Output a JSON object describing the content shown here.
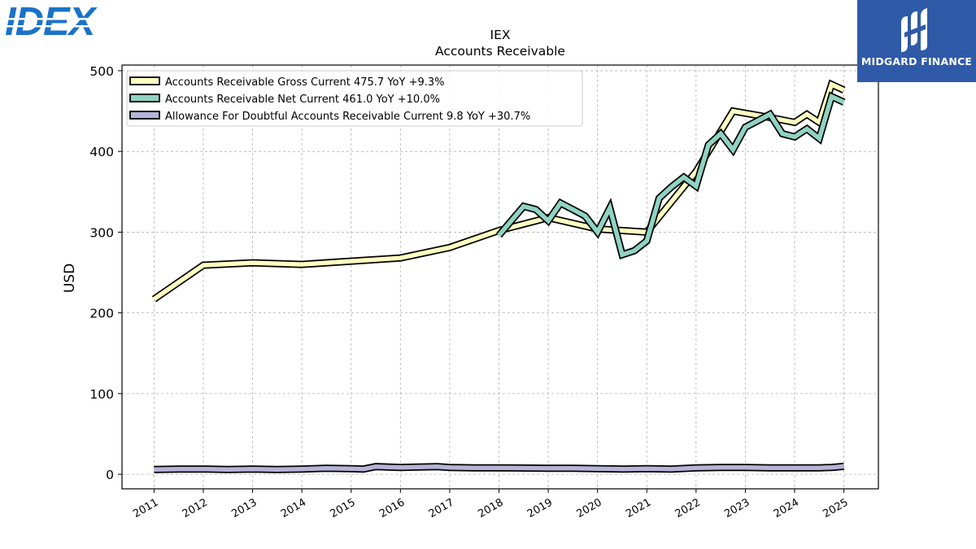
{
  "logos": {
    "company": "IDEX",
    "brand": "MIDGARD FINANCE"
  },
  "colors": {
    "gross": "#ffffc0",
    "net": "#8fd3c3",
    "allowance": "#b7b3d6",
    "brand_bg": "#2f5aa8",
    "company_logo": "#1a73c9"
  },
  "chart_data": {
    "type": "line",
    "title": "IEX",
    "subtitle": "Accounts Receivable",
    "xlabel": "",
    "ylabel": "USD",
    "ylim": [
      -18,
      507
    ],
    "xlim": [
      2010.35,
      2025.7
    ],
    "grid": true,
    "legend_position": "top-left",
    "x_ticks": [
      "2011",
      "2012",
      "2013",
      "2014",
      "2015",
      "2016",
      "2017",
      "2018",
      "2019",
      "2020",
      "2021",
      "2022",
      "2023",
      "2024",
      "2025"
    ],
    "y_ticks": [
      "0",
      "100",
      "200",
      "300",
      "400",
      "500"
    ],
    "series": [
      {
        "name": "Accounts Receivable Gross Current",
        "legend": "Accounts Receivable Gross Current  475.7 YoY +9.3%",
        "color": "#ffffc0",
        "points": [
          [
            2011.0,
            217
          ],
          [
            2012.0,
            259
          ],
          [
            2013.0,
            262
          ],
          [
            2014.0,
            260
          ],
          [
            2015.0,
            264
          ],
          [
            2016.0,
            268
          ],
          [
            2017.0,
            281
          ],
          [
            2018.0,
            302
          ],
          [
            2019.0,
            318
          ],
          [
            2020.0,
            304
          ],
          [
            2021.0,
            300
          ],
          [
            2022.0,
            375
          ],
          [
            2022.75,
            450
          ],
          [
            2023.5,
            442
          ],
          [
            2024.0,
            436
          ],
          [
            2024.25,
            446
          ],
          [
            2024.5,
            436
          ],
          [
            2024.75,
            483
          ],
          [
            2025.0,
            476
          ]
        ]
      },
      {
        "name": "Accounts Receivable Net Current",
        "legend": "Accounts Receivable Net Current  461.0 YoY +10.0%",
        "color": "#8fd3c3",
        "points": [
          [
            2018.0,
            296
          ],
          [
            2018.25,
            314
          ],
          [
            2018.5,
            332
          ],
          [
            2018.75,
            328
          ],
          [
            2019.0,
            314
          ],
          [
            2019.25,
            336
          ],
          [
            2019.5,
            328
          ],
          [
            2019.75,
            320
          ],
          [
            2020.0,
            300
          ],
          [
            2020.25,
            330
          ],
          [
            2020.5,
            272
          ],
          [
            2020.75,
            277
          ],
          [
            2021.0,
            289
          ],
          [
            2021.25,
            342
          ],
          [
            2021.5,
            356
          ],
          [
            2021.75,
            368
          ],
          [
            2022.0,
            357
          ],
          [
            2022.25,
            408
          ],
          [
            2022.5,
            422
          ],
          [
            2022.75,
            402
          ],
          [
            2023.0,
            430
          ],
          [
            2023.25,
            438
          ],
          [
            2023.5,
            446
          ],
          [
            2023.75,
            422
          ],
          [
            2024.0,
            418
          ],
          [
            2024.25,
            428
          ],
          [
            2024.5,
            416
          ],
          [
            2024.75,
            468
          ],
          [
            2025.0,
            461
          ]
        ]
      },
      {
        "name": "Allowance For Doubtful Accounts Receivable Current",
        "legend": "Allowance For Doubtful Accounts Receivable Current  9.8 YoY +30.7%",
        "color": "#b7b3d6",
        "points": [
          [
            2011.0,
            6
          ],
          [
            2011.5,
            6.5
          ],
          [
            2012.0,
            6.5
          ],
          [
            2012.5,
            6
          ],
          [
            2013.0,
            6.5
          ],
          [
            2013.5,
            6
          ],
          [
            2014.0,
            6.5
          ],
          [
            2014.5,
            7.5
          ],
          [
            2015.0,
            7
          ],
          [
            2015.25,
            6.5
          ],
          [
            2015.5,
            9.5
          ],
          [
            2016.0,
            8.5
          ],
          [
            2016.75,
            9.5
          ],
          [
            2017.0,
            8.5
          ],
          [
            2017.5,
            8
          ],
          [
            2018.0,
            8
          ],
          [
            2019.0,
            7.5
          ],
          [
            2019.5,
            7.5
          ],
          [
            2020.0,
            7
          ],
          [
            2020.5,
            6.5
          ],
          [
            2021.0,
            7
          ],
          [
            2021.5,
            6.5
          ],
          [
            2022.0,
            8
          ],
          [
            2022.5,
            8.5
          ],
          [
            2023.0,
            8.5
          ],
          [
            2023.5,
            8
          ],
          [
            2024.0,
            8
          ],
          [
            2024.5,
            8
          ],
          [
            2024.75,
            8.5
          ],
          [
            2025.0,
            9.8
          ]
        ]
      }
    ]
  }
}
